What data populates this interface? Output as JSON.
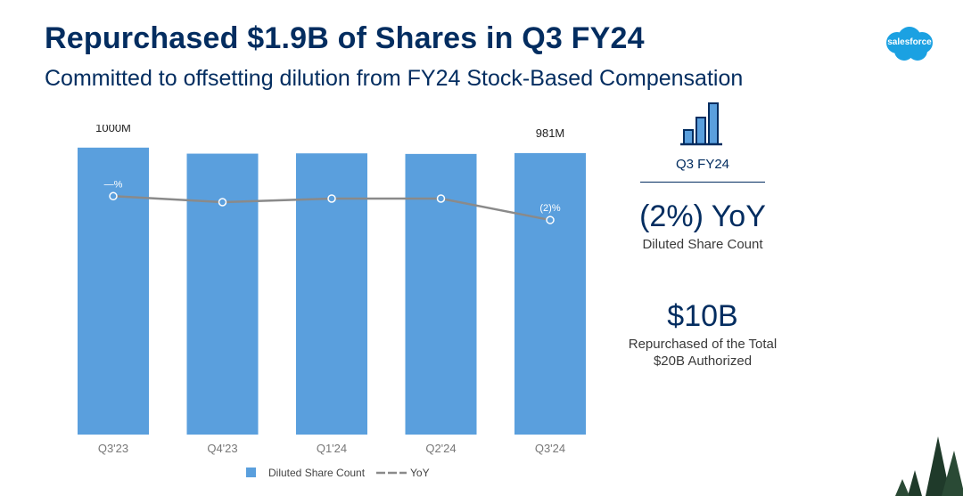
{
  "header": {
    "title": "Repurchased $1.9B of Shares in Q3 FY24",
    "subtitle": "Committed to offsetting dilution from FY24 Stock-Based Compensation"
  },
  "brand": {
    "logo_text": "salesforce",
    "logo_color": "#1ba1e2"
  },
  "kpi": {
    "period": "Q3 FY24",
    "yoy_value": "(2%) YoY",
    "yoy_label": "Diluted Share Count",
    "buyback_value": "$10B",
    "buyback_label_line1": "Repurchased of the Total",
    "buyback_label_line2": "$20B Authorized"
  },
  "colors": {
    "bar": "#5a9fdd",
    "line": "#8a8a8a",
    "navy": "#032d60",
    "tree": "#1f3a2a"
  },
  "chart_data": {
    "type": "bar",
    "categories": [
      "Q3'23",
      "Q4'23",
      "Q1'24",
      "Q2'24",
      "Q3'24"
    ],
    "series": [
      {
        "name": "Diluted Share Count",
        "kind": "bar",
        "unit": "M",
        "values": [
          1000,
          979,
          980,
          978,
          981
        ],
        "data_labels": [
          "1000M",
          "",
          "",
          "",
          "981M"
        ]
      },
      {
        "name": "YoY",
        "kind": "line",
        "unit": "%",
        "values": [
          0,
          -0.5,
          -0.2,
          -0.2,
          -2
        ],
        "data_labels": [
          "—%",
          "",
          "",
          "",
          "(2)%"
        ]
      }
    ],
    "legend": [
      {
        "label": "Diluted Share Count",
        "kind": "bar"
      },
      {
        "label": "YoY",
        "kind": "line"
      }
    ],
    "legend_position": "bottom-center",
    "title": "",
    "xlabel": "",
    "ylabel": "",
    "ylim": [
      0,
      1080
    ],
    "line_ylim": [
      -20,
      6
    ],
    "grid": false
  }
}
